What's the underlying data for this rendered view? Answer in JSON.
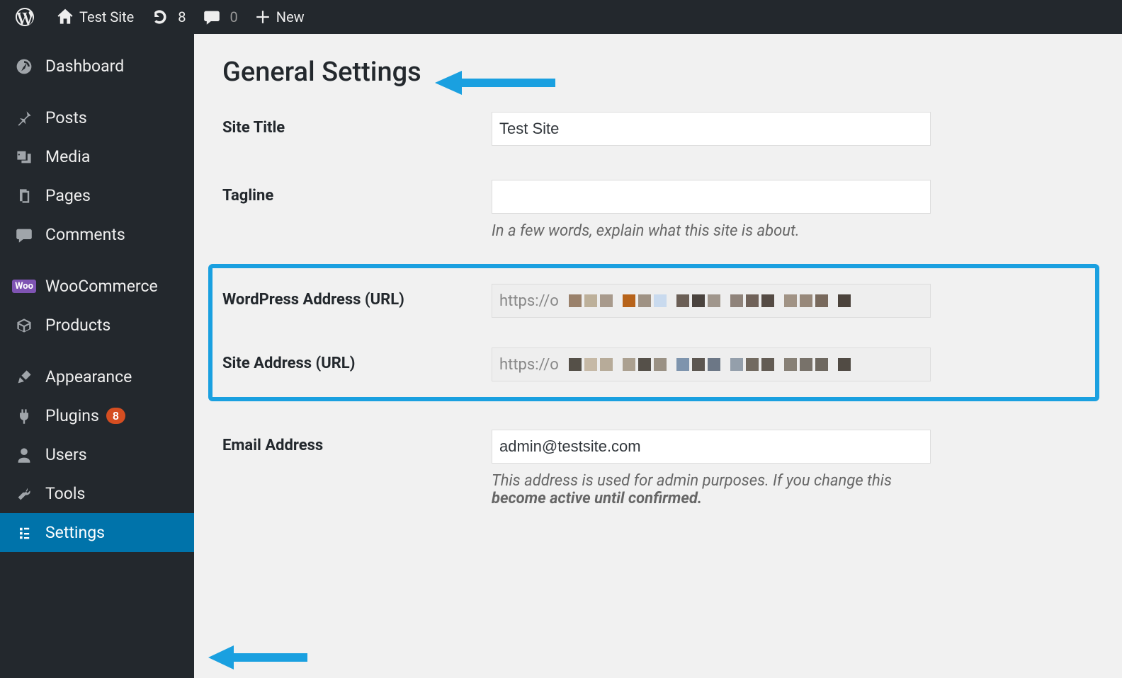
{
  "adminbar": {
    "site_name": "Test Site",
    "updates_count": "8",
    "comments_count": "0",
    "new_label": "New"
  },
  "sidebar": {
    "dashboard": "Dashboard",
    "posts": "Posts",
    "media": "Media",
    "pages": "Pages",
    "comments": "Comments",
    "woocommerce": "WooCommerce",
    "products": "Products",
    "appearance": "Appearance",
    "plugins": "Plugins",
    "plugins_badge": "8",
    "users": "Users",
    "tools": "Tools",
    "settings": "Settings",
    "woo_badge_text": "Woo"
  },
  "page": {
    "title": "General Settings",
    "fields": {
      "site_title_label": "Site Title",
      "site_title_value": "Test Site",
      "tagline_label": "Tagline",
      "tagline_value": "",
      "tagline_desc": "In a few words, explain what this site is about.",
      "wp_url_label": "WordPress Address (URL)",
      "wp_url_value": "https://o",
      "site_url_label": "Site Address (URL)",
      "site_url_value": "https://o",
      "email_label": "Email Address",
      "email_value": "admin@testsite.com",
      "email_desc_1": "This address is used for admin purposes. If you change this",
      "email_desc_2": "become active until confirmed."
    }
  },
  "annotation": {
    "highlight_color": "#1aa0e0",
    "redact_colors_wp": [
      "#9a816b",
      "#bdb09a",
      "#a89a8c",
      "#b7631a",
      "#9f9284",
      "#c9daee",
      "#6b5f56",
      "#4a433e",
      "#a0968c",
      "#8f837a",
      "#706259",
      "#554b44",
      "#a19385",
      "#97887a",
      "#78695c",
      "#4c433c"
    ],
    "redact_colors_site": [
      "#555048",
      "#c6b9a6",
      "#b7ab99",
      "#aba090",
      "#555049",
      "#9a9184",
      "#7e94ad",
      "#5c5650",
      "#6c7786",
      "#949fab",
      "#726a60",
      "#635c54",
      "#878076",
      "#78726a",
      "#6e6860",
      "#514b44"
    ]
  }
}
